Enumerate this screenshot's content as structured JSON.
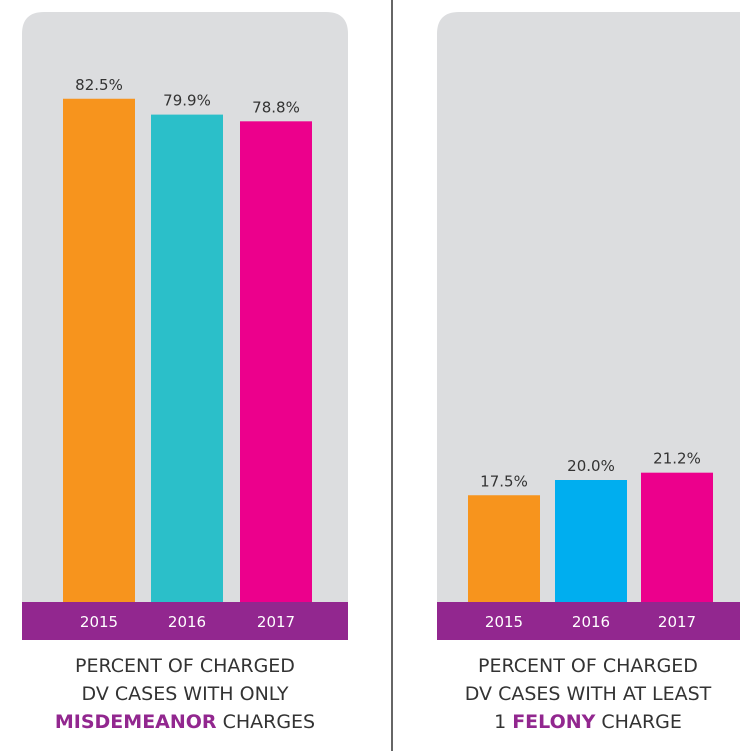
{
  "chart_data": [
    {
      "type": "bar",
      "categories": [
        "2015",
        "2016",
        "2017"
      ],
      "values": [
        82.5,
        79.9,
        78.8
      ],
      "value_labels": [
        "82.5%",
        "79.9%",
        "78.8%"
      ],
      "colors": [
        "#f7941d",
        "#2bbfc9",
        "#ec008c"
      ],
      "caption_lines": [
        "PERCENT OF CHARGED",
        "DV CASES WITH ONLY"
      ],
      "caption_emphasis": "MISDEMEANOR",
      "caption_rest": "CHARGES"
    },
    {
      "type": "bar",
      "categories": [
        "2015",
        "2016",
        "2017"
      ],
      "values": [
        17.5,
        20.0,
        21.2
      ],
      "value_labels": [
        "17.5%",
        "20.0%",
        "21.2%"
      ],
      "colors": [
        "#f7941d",
        "#00aeef",
        "#ec008c"
      ],
      "caption_lines": [
        "PERCENT OF CHARGED",
        "DV CASES WITH AT LEAST"
      ],
      "caption_prefix": "1",
      "caption_emphasis": "FELONY",
      "caption_rest": "CHARGE"
    }
  ]
}
